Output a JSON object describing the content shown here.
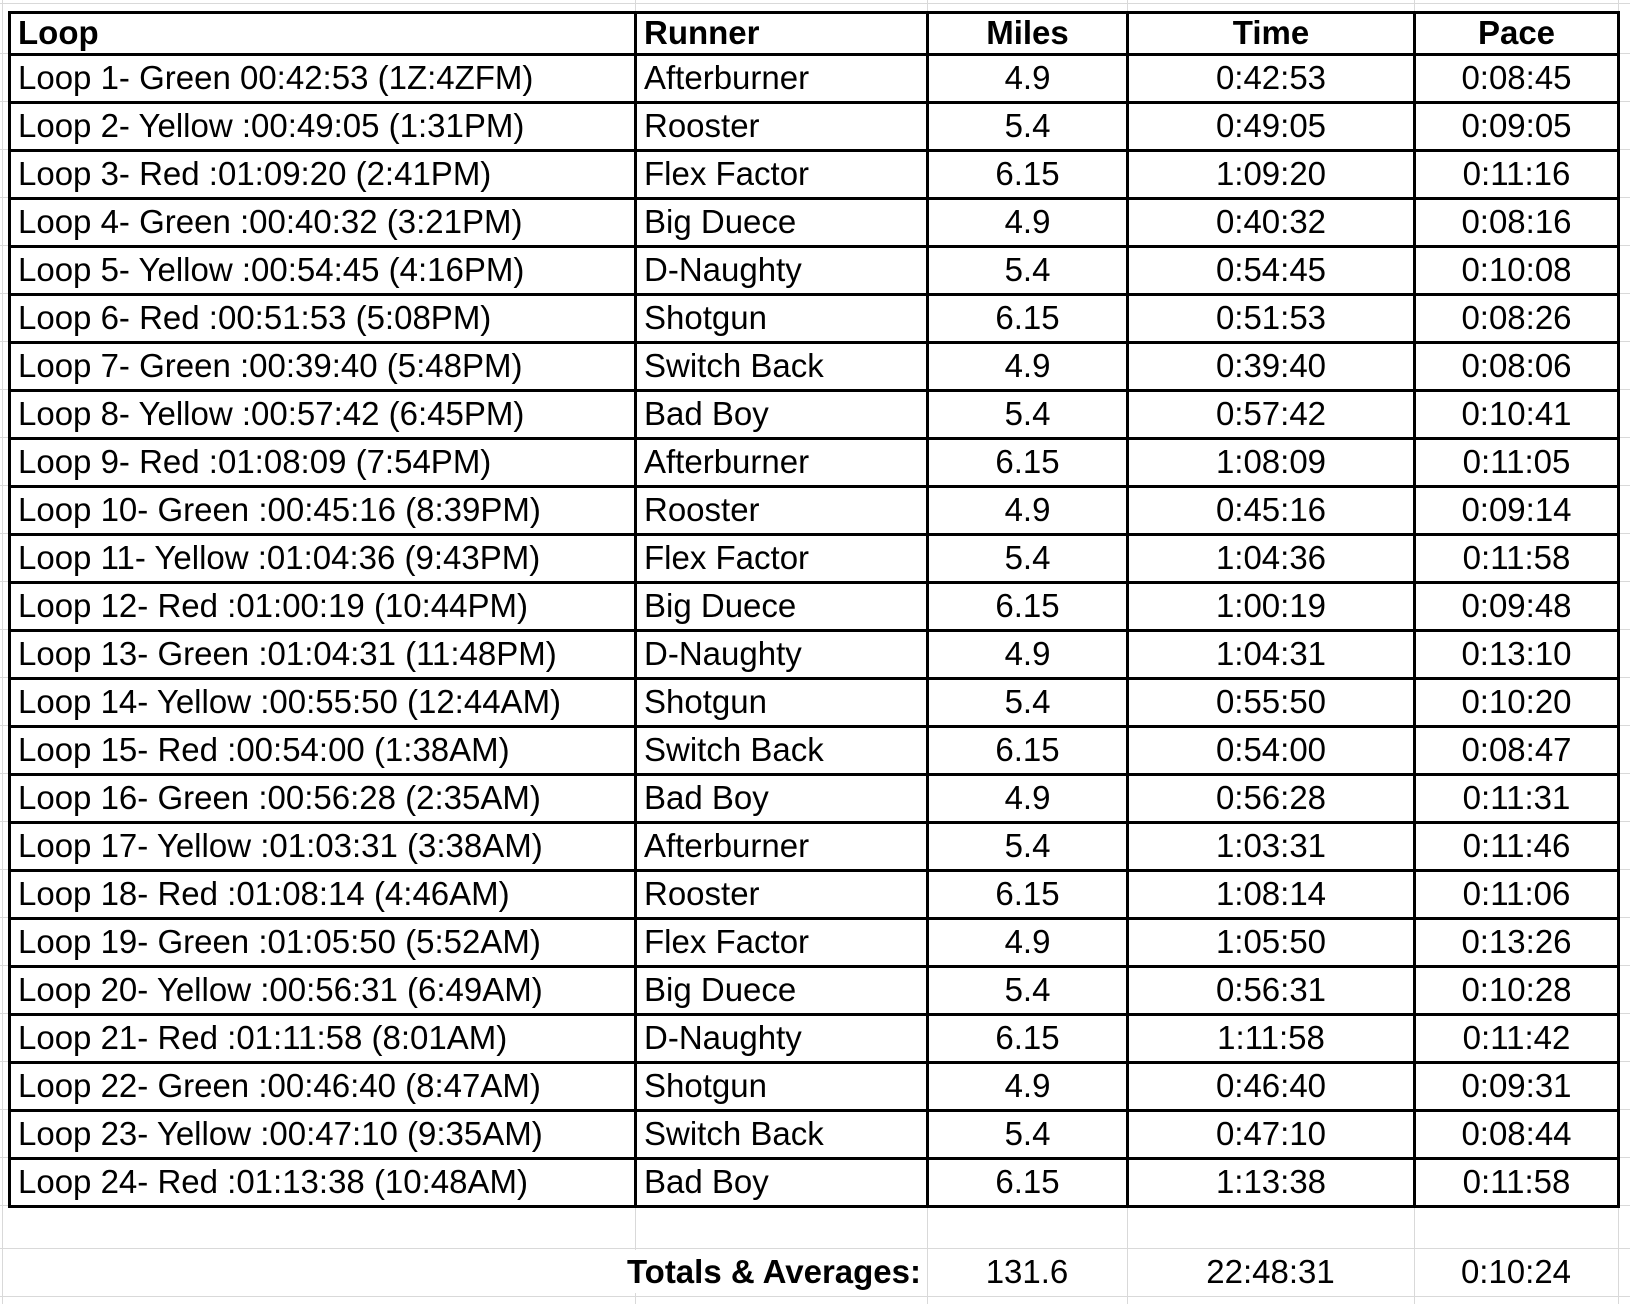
{
  "sheet": {
    "table": {
      "columns": [
        "Loop",
        "Runner",
        "Miles",
        "Time",
        "Pace"
      ],
      "rows": [
        [
          "Loop 1- Green 00:42:53 (1Z:4ZFM)",
          "Afterburner",
          "4.9",
          "0:42:53",
          "0:08:45"
        ],
        [
          "Loop 2- Yellow :00:49:05 (1:31PM)",
          "Rooster",
          "5.4",
          "0:49:05",
          "0:09:05"
        ],
        [
          "Loop 3- Red :01:09:20 (2:41PM)",
          "Flex Factor",
          "6.15",
          "1:09:20",
          "0:11:16"
        ],
        [
          "Loop 4- Green :00:40:32 (3:21PM)",
          "Big Duece",
          "4.9",
          "0:40:32",
          "0:08:16"
        ],
        [
          "Loop 5- Yellow :00:54:45 (4:16PM)",
          "D-Naughty",
          "5.4",
          "0:54:45",
          "0:10:08"
        ],
        [
          "Loop 6- Red :00:51:53 (5:08PM)",
          "Shotgun",
          "6.15",
          "0:51:53",
          "0:08:26"
        ],
        [
          "Loop 7- Green :00:39:40 (5:48PM)",
          "Switch Back",
          "4.9",
          "0:39:40",
          "0:08:06"
        ],
        [
          "Loop 8- Yellow :00:57:42 (6:45PM)",
          "Bad Boy",
          "5.4",
          "0:57:42",
          "0:10:41"
        ],
        [
          "Loop 9- Red :01:08:09 (7:54PM)",
          "Afterburner",
          "6.15",
          "1:08:09",
          "0:11:05"
        ],
        [
          "Loop 10- Green :00:45:16 (8:39PM)",
          "Rooster",
          "4.9",
          "0:45:16",
          "0:09:14"
        ],
        [
          "Loop 11- Yellow :01:04:36 (9:43PM)",
          "Flex Factor",
          "5.4",
          "1:04:36",
          "0:11:58"
        ],
        [
          "Loop 12- Red :01:00:19 (10:44PM)",
          "Big Duece",
          "6.15",
          "1:00:19",
          "0:09:48"
        ],
        [
          "Loop 13- Green :01:04:31 (11:48PM)",
          "D-Naughty",
          "4.9",
          "1:04:31",
          "0:13:10"
        ],
        [
          "Loop 14- Yellow :00:55:50 (12:44AM)",
          "Shotgun",
          "5.4",
          "0:55:50",
          "0:10:20"
        ],
        [
          "Loop 15- Red :00:54:00 (1:38AM)",
          "Switch Back",
          "6.15",
          "0:54:00",
          "0:08:47"
        ],
        [
          "Loop 16- Green :00:56:28 (2:35AM)",
          "Bad Boy",
          "4.9",
          "0:56:28",
          "0:11:31"
        ],
        [
          "Loop 17- Yellow :01:03:31 (3:38AM)",
          "Afterburner",
          "5.4",
          "1:03:31",
          "0:11:46"
        ],
        [
          "Loop 18- Red :01:08:14 (4:46AM)",
          "Rooster",
          "6.15",
          "1:08:14",
          "0:11:06"
        ],
        [
          "Loop 19- Green :01:05:50 (5:52AM)",
          "Flex Factor",
          "4.9",
          "1:05:50",
          "0:13:26"
        ],
        [
          "Loop 20- Yellow :00:56:31 (6:49AM)",
          "Big Duece",
          "5.4",
          "0:56:31",
          "0:10:28"
        ],
        [
          "Loop 21- Red :01:11:58 (8:01AM)",
          "D-Naughty",
          "6.15",
          "1:11:58",
          "0:11:42"
        ],
        [
          "Loop 22- Green :00:46:40 (8:47AM)",
          "Shotgun",
          "4.9",
          "0:46:40",
          "0:09:31"
        ],
        [
          "Loop 23- Yellow :00:47:10 (9:35AM)",
          "Switch Back",
          "5.4",
          "0:47:10",
          "0:08:44"
        ],
        [
          "Loop 24- Red :01:13:38 (10:48AM)",
          "Bad Boy",
          "6.15",
          "1:13:38",
          "0:11:58"
        ]
      ],
      "totals": {
        "label": "Totals & Averages:",
        "miles": "131.6",
        "time": "22:48:31",
        "pace": "0:10:24"
      }
    }
  }
}
